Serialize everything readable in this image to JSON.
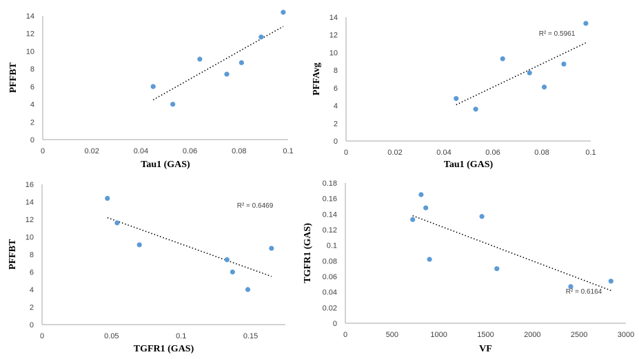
{
  "chart_data": [
    {
      "type": "scatter",
      "xlabel": "Tau1 (GAS)",
      "ylabel": "PFFBT",
      "xlim": [
        0,
        0.1
      ],
      "ylim": [
        0,
        14
      ],
      "xticks": [
        0,
        0.02,
        0.04,
        0.06,
        0.08,
        0.1
      ],
      "xtick_labels": [
        "0",
        "0.02",
        "0.04",
        "0.06",
        "0.08",
        "0.1"
      ],
      "yticks": [
        0,
        2,
        4,
        6,
        8,
        10,
        12,
        14
      ],
      "ytick_labels": [
        "0",
        "2",
        "4",
        "6",
        "8",
        "10",
        "12",
        "14"
      ],
      "x": [
        0.045,
        0.053,
        0.064,
        0.075,
        0.081,
        0.089,
        0.098
      ],
      "y": [
        6.0,
        4.0,
        9.1,
        7.4,
        8.7,
        11.6,
        14.4
      ],
      "trendline": {
        "x": [
          0.045,
          0.098
        ],
        "y": [
          4.5,
          12.8
        ]
      },
      "r2_label": ""
    },
    {
      "type": "scatter",
      "xlabel": "Tau1 (GAS)",
      "ylabel": "PFFAvg",
      "xlim": [
        0,
        0.1
      ],
      "ylim": [
        0,
        14
      ],
      "xticks": [
        0,
        0.02,
        0.04,
        0.06,
        0.08,
        0.1
      ],
      "xtick_labels": [
        "0",
        "0.02",
        "0.04",
        "0.06",
        "0.08",
        "0.1"
      ],
      "yticks": [
        0,
        2,
        4,
        6,
        8,
        10,
        12,
        14
      ],
      "ytick_labels": [
        "0",
        "2",
        "4",
        "6",
        "8",
        "10",
        "12",
        "14"
      ],
      "x": [
        0.045,
        0.053,
        0.064,
        0.075,
        0.081,
        0.089,
        0.098
      ],
      "y": [
        4.8,
        3.6,
        9.3,
        7.7,
        6.1,
        8.7,
        13.3
      ],
      "trendline": {
        "x": [
          0.045,
          0.098
        ],
        "y": [
          4.1,
          11.1
        ]
      },
      "r2_label": "R² = 0.5961"
    },
    {
      "type": "scatter",
      "xlabel": "TGFR1 (GAS)",
      "ylabel": "PFFBT",
      "xlim": [
        0,
        0.175
      ],
      "ylim": [
        0,
        16
      ],
      "xticks": [
        0,
        0.05,
        0.1,
        0.15
      ],
      "xtick_labels": [
        "0",
        "0.05",
        "0.1",
        "0.15"
      ],
      "yticks": [
        0,
        2,
        4,
        6,
        8,
        10,
        12,
        14,
        16
      ],
      "ytick_labels": [
        "0",
        "2",
        "4",
        "6",
        "8",
        "10",
        "12",
        "14",
        "16"
      ],
      "x": [
        0.047,
        0.054,
        0.07,
        0.133,
        0.137,
        0.148,
        0.165
      ],
      "y": [
        14.4,
        11.6,
        9.1,
        7.4,
        6.0,
        4.0,
        8.7
      ],
      "trendline": {
        "x": [
          0.047,
          0.165
        ],
        "y": [
          12.2,
          5.5
        ]
      },
      "r2_label": "R² = 0.6469"
    },
    {
      "type": "scatter",
      "xlabel": "VF",
      "ylabel": "TGFR1 (GAS)",
      "xlim": [
        0,
        3000
      ],
      "ylim": [
        0,
        0.18
      ],
      "xticks": [
        0,
        500,
        1000,
        1500,
        2000,
        2500,
        3000
      ],
      "xtick_labels": [
        "0",
        "500",
        "1000",
        "1500",
        "2000",
        "2500",
        "3000"
      ],
      "yticks": [
        0,
        0.02,
        0.04,
        0.06,
        0.08,
        0.1,
        0.12,
        0.14,
        0.16,
        0.18
      ],
      "ytick_labels": [
        "0",
        "0.02",
        "0.04",
        "0.06",
        "0.08",
        "0.1",
        "0.12",
        "0.14",
        "0.16",
        "0.18"
      ],
      "x": [
        720,
        810,
        860,
        900,
        1460,
        1620,
        2410,
        2840
      ],
      "y": [
        0.133,
        0.165,
        0.148,
        0.082,
        0.137,
        0.07,
        0.047,
        0.054
      ],
      "trendline": {
        "x": [
          720,
          2840
        ],
        "y": [
          0.138,
          0.042
        ]
      },
      "r2_label": "R² = 0.6164"
    }
  ]
}
